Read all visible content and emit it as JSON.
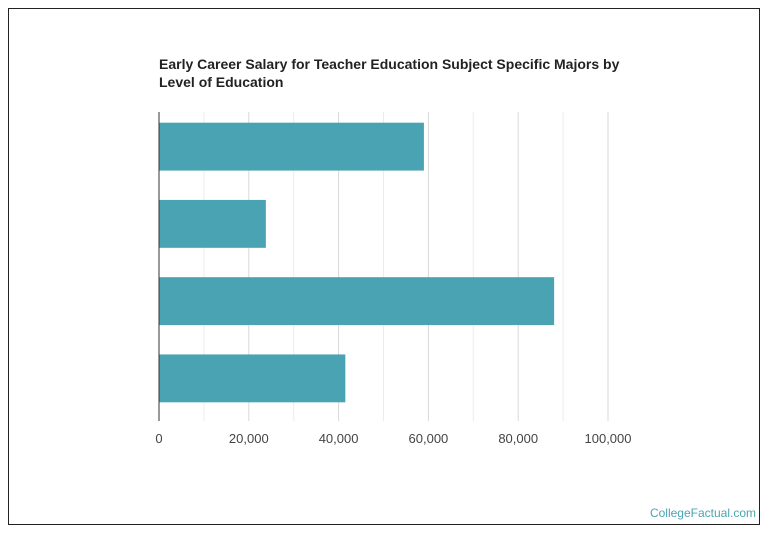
{
  "chart_data": {
    "type": "bar",
    "orientation": "horizontal",
    "title": "Early Career Salary for Teacher Education Subject Specific Majors by Level of Education",
    "categories": [
      "",
      "",
      "",
      ""
    ],
    "values": [
      59000,
      23800,
      88000,
      41500
    ],
    "xlim": [
      0,
      100000
    ],
    "xticks": [
      0,
      20000,
      40000,
      60000,
      80000,
      100000
    ],
    "xtick_labels": [
      "0",
      "20,000",
      "40,000",
      "60,000",
      "80,000",
      "100,000"
    ],
    "grid": true,
    "bar_color": "#4aa3b3"
  },
  "footer": {
    "credit": "CollegeFactual.com"
  }
}
